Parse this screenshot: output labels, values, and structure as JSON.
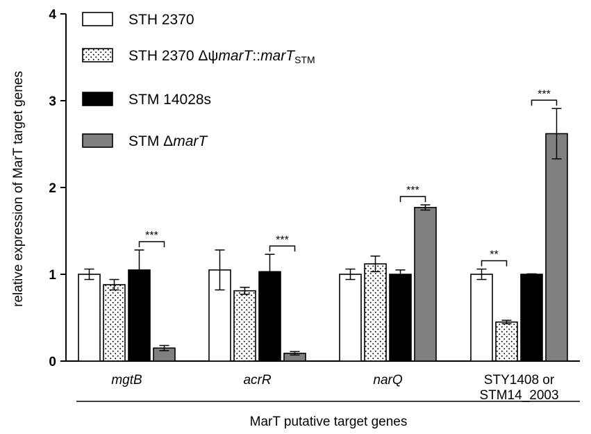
{
  "chart_data": {
    "type": "bar",
    "xlabel": "MarT putative target genes",
    "ylabel": "relative expression of MarT target genes",
    "ylim": [
      0,
      4
    ],
    "yticks": [
      "0",
      "1",
      "2",
      "3",
      "4"
    ],
    "ytick_values": [
      0,
      1,
      2,
      3,
      4
    ],
    "categories": [
      {
        "lines": [
          "mgtB"
        ],
        "italic": true
      },
      {
        "lines": [
          "acrR"
        ],
        "italic": true
      },
      {
        "lines": [
          "narQ"
        ],
        "italic": true
      },
      {
        "lines": [
          "STY1408 or",
          "STM14_2003"
        ],
        "italic": false
      }
    ],
    "series": [
      {
        "name": "STH 2370",
        "fill": "#ffffff",
        "pattern": "none",
        "values": [
          1.0,
          1.05,
          1.0,
          1.0
        ],
        "errors": [
          0.06,
          0.23,
          0.06,
          0.06
        ]
      },
      {
        "name": "STH 2370 ΔψmarT::marTSTM",
        "fill": "#ffffff",
        "pattern": "dots",
        "values": [
          0.88,
          0.81,
          1.12,
          0.45
        ],
        "errors": [
          0.06,
          0.04,
          0.09,
          0.02
        ]
      },
      {
        "name": "STM 14028s",
        "fill": "#000000",
        "pattern": "none",
        "values": [
          1.05,
          1.03,
          1.0,
          1.0
        ],
        "errors": [
          0.23,
          0.2,
          0.05,
          0.005
        ]
      },
      {
        "name": "STM ΔmarT",
        "fill": "#808080",
        "pattern": "none",
        "values": [
          0.15,
          0.09,
          1.77,
          2.62
        ],
        "errors": [
          0.03,
          0.02,
          0.03,
          0.29
        ]
      }
    ],
    "legend_entries": [
      [
        {
          "t": "STH 2370"
        }
      ],
      [
        {
          "t": "STH 2370 Δψ"
        },
        {
          "t": "marT",
          "i": true
        },
        {
          "t": "::"
        },
        {
          "t": "marT",
          "i": true
        },
        {
          "t": "STM",
          "sub": true
        }
      ],
      [
        {
          "t": "STM 14028s"
        }
      ],
      [
        {
          "t": "STM Δ"
        },
        {
          "t": "marT",
          "i": true
        }
      ]
    ],
    "legend_position": "top-left",
    "significance": [
      {
        "category": 0,
        "from_series": 2,
        "to_series": 3,
        "label": "***"
      },
      {
        "category": 1,
        "from_series": 2,
        "to_series": 3,
        "label": "***"
      },
      {
        "category": 2,
        "from_series": 2,
        "to_series": 3,
        "label": "***"
      },
      {
        "category": 3,
        "from_series": 0,
        "to_series": 1,
        "label": "**"
      },
      {
        "category": 3,
        "from_series": 2,
        "to_series": 3,
        "label": "***"
      }
    ],
    "grid": false
  }
}
